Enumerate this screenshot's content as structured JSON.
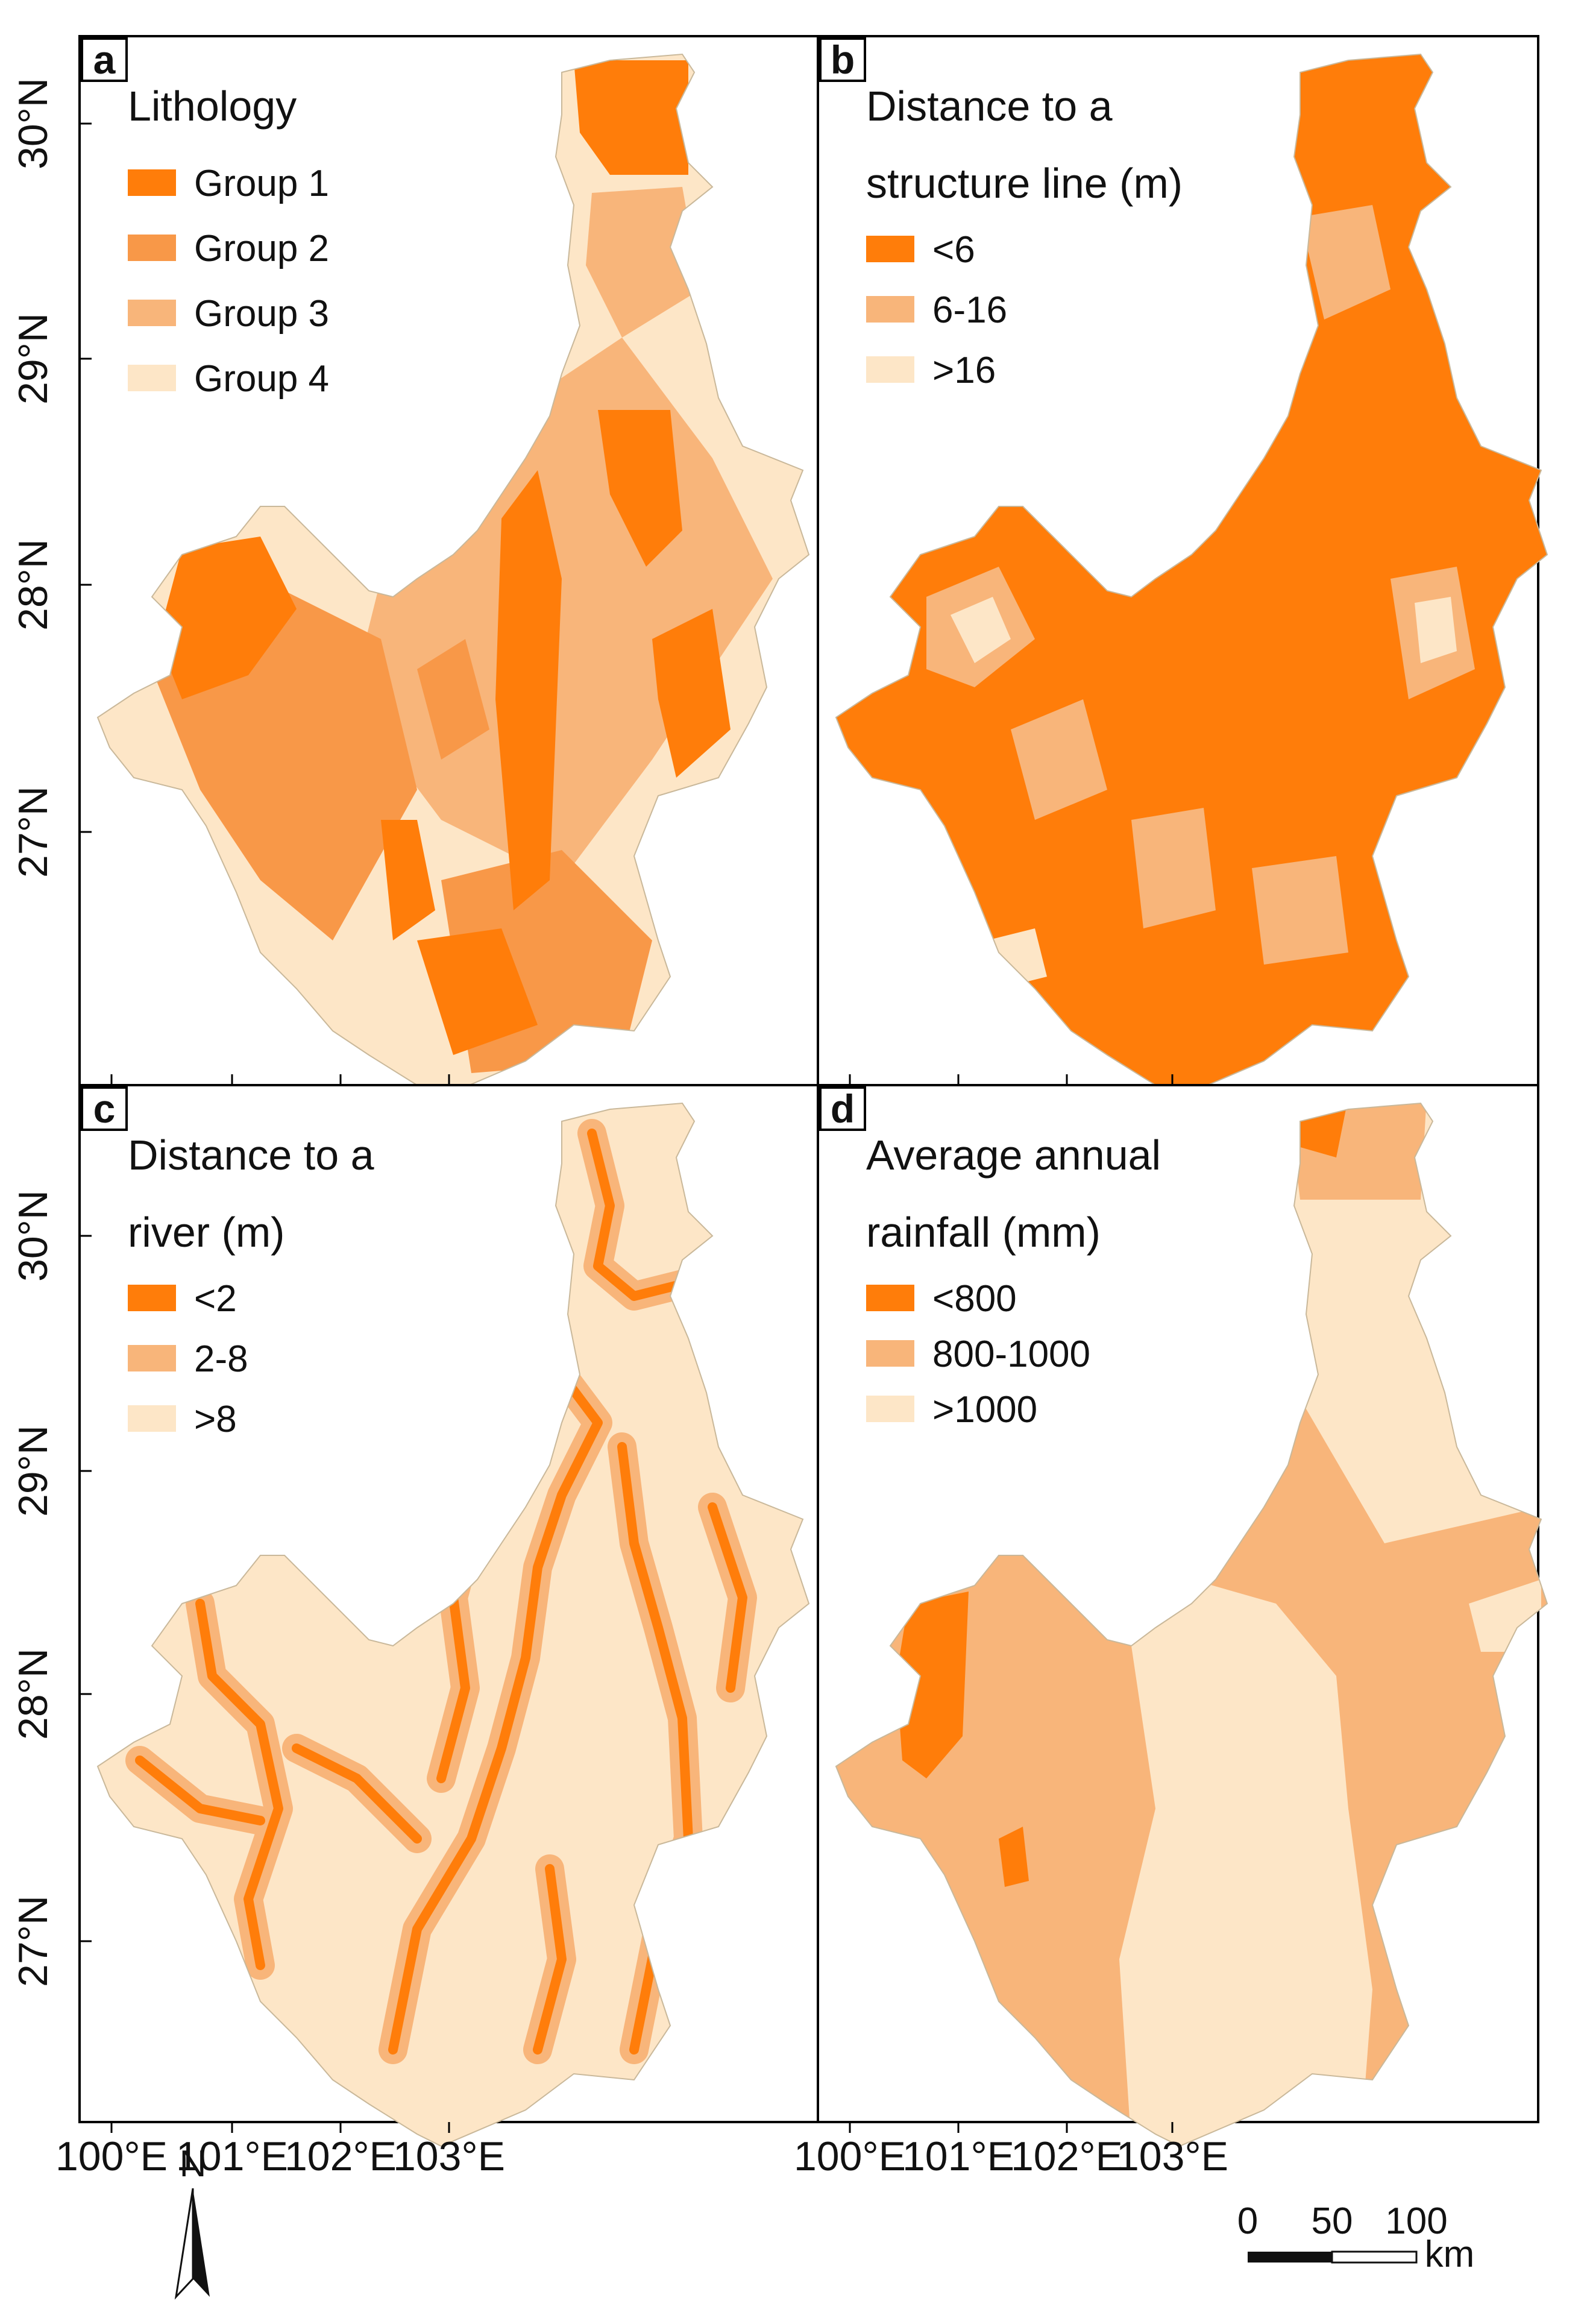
{
  "colors": {
    "c1": "#ff7d0a",
    "c2": "#f89848",
    "c3": "#f8b57a",
    "c4": "#fde6c7"
  },
  "axes": {
    "lat_labels": [
      "30°N",
      "29°N",
      "28°N",
      "27°N"
    ],
    "lon_labels": [
      "100°E",
      "101°E",
      "102°E",
      "103°E"
    ]
  },
  "panels": [
    {
      "id": "a",
      "letter": "a",
      "title_lines": [
        "Lithology"
      ],
      "legend": [
        {
          "label": "Group 1",
          "color": "c1"
        },
        {
          "label": "Group 2",
          "color": "c2"
        },
        {
          "label": "Group 3",
          "color": "c3"
        },
        {
          "label": "Group 4",
          "color": "c4"
        }
      ]
    },
    {
      "id": "b",
      "letter": "b",
      "title_lines": [
        "Distance to a",
        "structure line (m)"
      ],
      "legend": [
        {
          "label": "<6",
          "color": "c1"
        },
        {
          "label": "6-16",
          "color": "c3"
        },
        {
          "label": ">16",
          "color": "c4"
        }
      ]
    },
    {
      "id": "c",
      "letter": "c",
      "title_lines": [
        "Distance to a",
        "river (m)"
      ],
      "legend": [
        {
          "label": "<2",
          "color": "c1"
        },
        {
          "label": "2-8",
          "color": "c3"
        },
        {
          "label": ">8",
          "color": "c4"
        }
      ]
    },
    {
      "id": "d",
      "letter": "d",
      "title_lines": [
        "Average annual",
        "rainfall (mm)"
      ],
      "legend": [
        {
          "label": "<800",
          "color": "c1"
        },
        {
          "label": "800-1000",
          "color": "c3"
        },
        {
          "label": ">1000",
          "color": "c4"
        }
      ]
    }
  ],
  "north_arrow": {
    "label": "N"
  },
  "scale_bar": {
    "ticks": [
      "0",
      "50",
      "100"
    ],
    "unit": "km"
  }
}
